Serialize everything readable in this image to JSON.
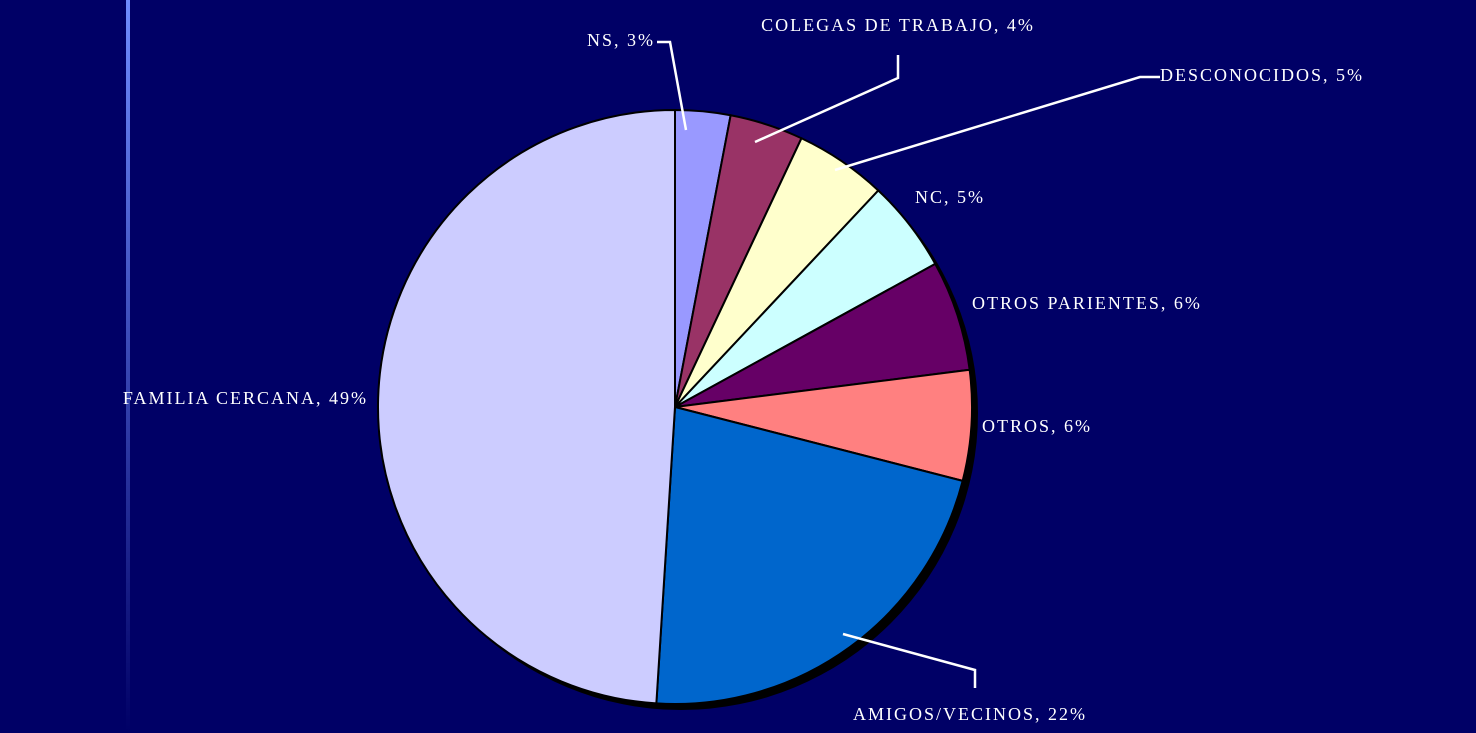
{
  "chart_data": {
    "type": "pie",
    "categories": [
      "NS, 3%",
      "COLEGAS DE TRABAJO, 4%",
      "DESCONOCIDOS, 5%",
      "NC, 5%",
      "OTROS PARIENTES, 6%",
      "OTROS, 6%",
      "AMIGOS/VECINOS, 22%",
      "FAMILIA CERCANA, 49%"
    ],
    "values": [
      3,
      4,
      5,
      5,
      6,
      6,
      22,
      49
    ],
    "colors": [
      "#9999ff",
      "#993366",
      "#ffffcc",
      "#ccffff",
      "#660066",
      "#ff8080",
      "#0066cc",
      "#ccccff"
    ]
  }
}
